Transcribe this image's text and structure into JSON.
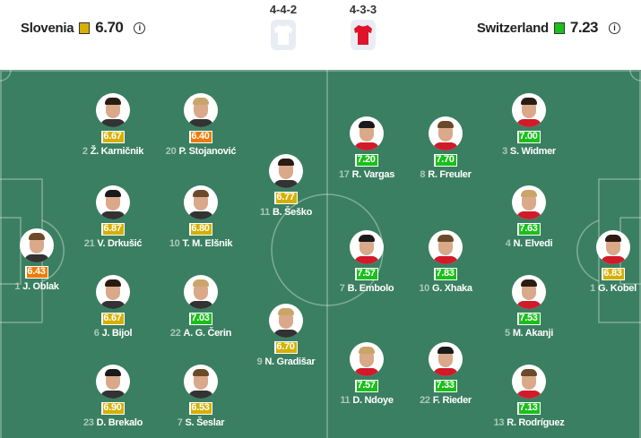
{
  "home": {
    "name": "Slovenia",
    "rating": "6.70",
    "rating_color": "#d6b000",
    "formation": "4-4-2",
    "shirt_color": "#ffffff"
  },
  "away": {
    "name": "Switzerland",
    "rating": "7.23",
    "rating_color": "#1bbf1b",
    "formation": "4-3-3",
    "shirt_color": "#e0132b"
  },
  "info_icon": "info-icon",
  "colors": {
    "pitch": "#3b7f62",
    "yellow": "#d6b000",
    "orange": "#ef7b00",
    "green": "#1bbf1b"
  },
  "players": [
    {
      "team": "home",
      "number": "1",
      "name": "J. Oblak",
      "rating": "6.43",
      "rating_color": "#ef7b00"
    },
    {
      "team": "home",
      "number": "2",
      "name": "Ž. Karničnik",
      "rating": "6.67",
      "rating_color": "#d6b000"
    },
    {
      "team": "home",
      "number": "20",
      "name": "P. Stojanović",
      "rating": "6.40",
      "rating_color": "#ef7b00"
    },
    {
      "team": "home",
      "number": "21",
      "name": "V. Drkušić",
      "rating": "6.87",
      "rating_color": "#d6b000"
    },
    {
      "team": "home",
      "number": "10",
      "name": "T. M. Elšnik",
      "rating": "6.80",
      "rating_color": "#d6b000"
    },
    {
      "team": "home",
      "number": "6",
      "name": "J. Bijol",
      "rating": "6.67",
      "rating_color": "#d6b000"
    },
    {
      "team": "home",
      "number": "22",
      "name": "A. G. Čerin",
      "rating": "7.03",
      "rating_color": "#1bbf1b"
    },
    {
      "team": "home",
      "number": "23",
      "name": "D. Brekalo",
      "rating": "6.90",
      "rating_color": "#d6b000"
    },
    {
      "team": "home",
      "number": "7",
      "name": "S. Šeslar",
      "rating": "6.53",
      "rating_color": "#d6b000"
    },
    {
      "team": "home",
      "number": "11",
      "name": "B. Šeško",
      "rating": "6.77",
      "rating_color": "#d6b000"
    },
    {
      "team": "home",
      "number": "9",
      "name": "N. Gradišar",
      "rating": "6.70",
      "rating_color": "#d6b000"
    },
    {
      "team": "away",
      "number": "17",
      "name": "R. Vargas",
      "rating": "7.20",
      "rating_color": "#1bbf1b"
    },
    {
      "team": "away",
      "number": "8",
      "name": "R. Freuler",
      "rating": "7.70",
      "rating_color": "#1bbf1b"
    },
    {
      "team": "away",
      "number": "3",
      "name": "S. Widmer",
      "rating": "7.00",
      "rating_color": "#1bbf1b"
    },
    {
      "team": "away",
      "number": "4",
      "name": "N. Elvedi",
      "rating": "7.63",
      "rating_color": "#1bbf1b"
    },
    {
      "team": "away",
      "number": "7",
      "name": "B. Embolo",
      "rating": "7.57",
      "rating_color": "#1bbf1b"
    },
    {
      "team": "away",
      "number": "10",
      "name": "G. Xhaka",
      "rating": "7.83",
      "rating_color": "#1bbf1b"
    },
    {
      "team": "away",
      "number": "5",
      "name": "M. Akanji",
      "rating": "7.53",
      "rating_color": "#1bbf1b"
    },
    {
      "team": "away",
      "number": "11",
      "name": "D. Ndoye",
      "rating": "7.57",
      "rating_color": "#1bbf1b"
    },
    {
      "team": "away",
      "number": "22",
      "name": "F. Rieder",
      "rating": "7.33",
      "rating_color": "#1bbf1b"
    },
    {
      "team": "away",
      "number": "13",
      "name": "R. Rodríguez",
      "rating": "7.13",
      "rating_color": "#1bbf1b"
    },
    {
      "team": "away",
      "number": "1",
      "name": "G. Kobel",
      "rating": "6.83",
      "rating_color": "#d6b000"
    }
  ]
}
